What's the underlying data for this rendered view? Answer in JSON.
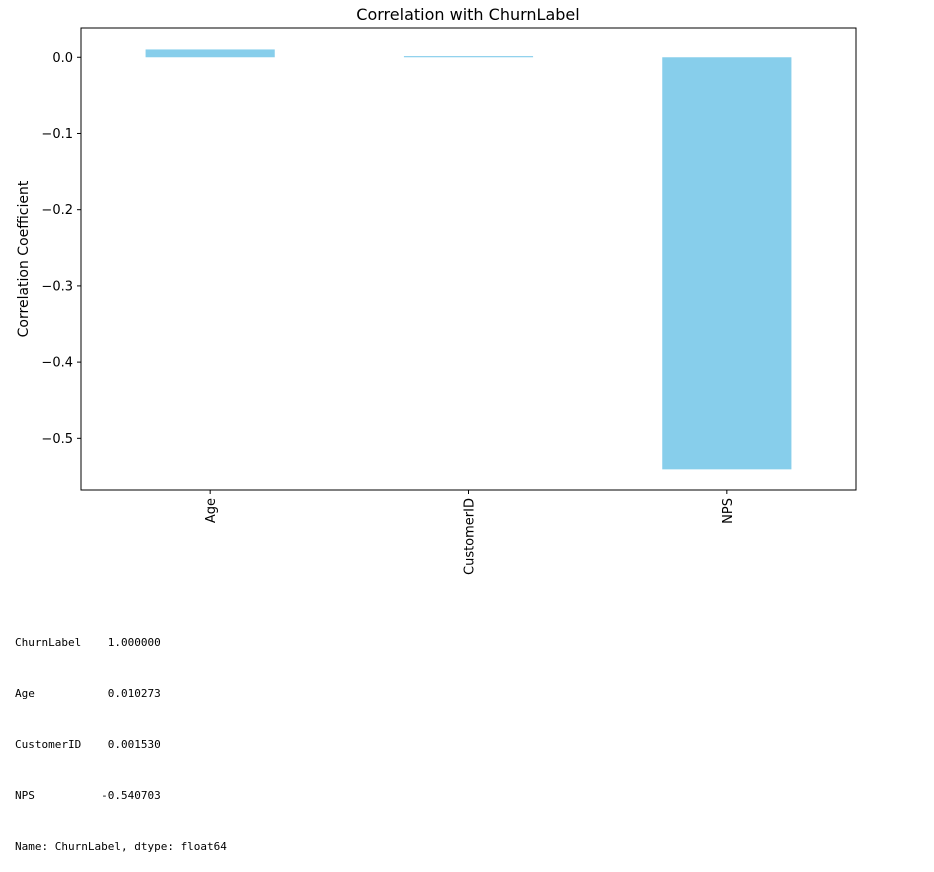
{
  "chart_data": {
    "type": "bar",
    "title": "Correlation with ChurnLabel",
    "xlabel": "",
    "ylabel": "Correlation Coefficient",
    "categories": [
      "Age",
      "CustomerID",
      "NPS"
    ],
    "values": [
      0.010273,
      0.00153,
      -0.540703
    ],
    "ylim": [
      -0.5678,
      0.0384
    ],
    "yticks": [
      0.0,
      -0.1,
      -0.2,
      -0.3,
      -0.4,
      -0.5
    ],
    "ytick_labels": [
      "0.0",
      "−0.1",
      "−0.2",
      "−0.3",
      "−0.4",
      "−0.5"
    ],
    "bar_color": "#87ceeb",
    "grid": false,
    "legend": "none",
    "xtick_rotation": 90
  },
  "output": {
    "lines": [
      "ChurnLabel    1.000000",
      "Age           0.010273",
      "CustomerID    0.001530",
      "NPS          -0.540703",
      "Name: ChurnLabel, dtype: float64"
    ]
  }
}
